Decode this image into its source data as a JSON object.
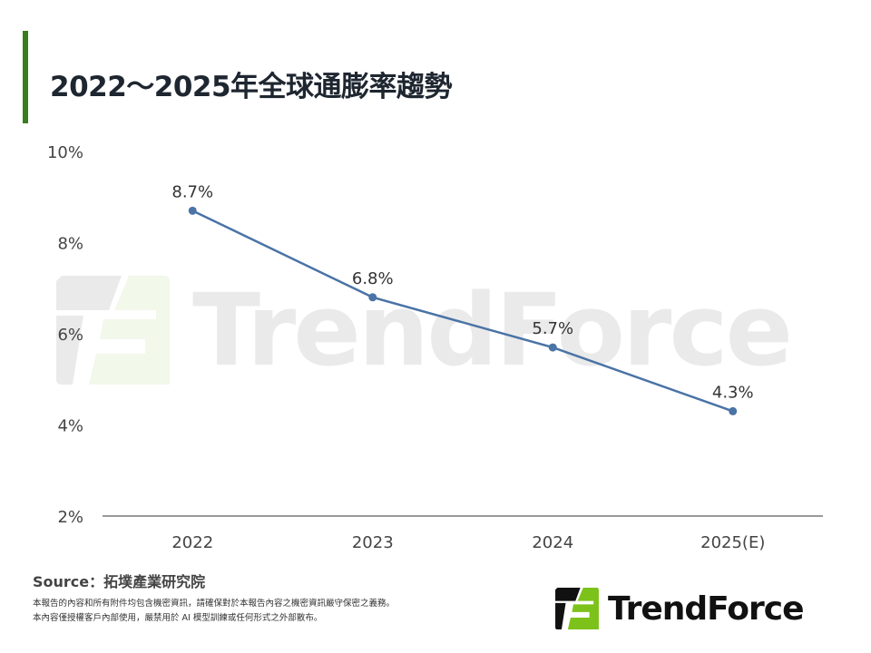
{
  "colors": {
    "accent": "#3a7d1e",
    "line": "#4a73a6",
    "logo_green": "#7cc21a",
    "logo_dark": "#111111"
  },
  "title": "2022～2025年全球通膨率趨勢",
  "source": "Source：拓墣產業研究院",
  "notice_lines": [
    "本報告的內容和所有附件均包含機密資訊，請確保對於本報告內容之機密資訊嚴守保密之義務。",
    "本內容僅授權客戶內部使用，嚴禁用於 AI 模型訓練或任何形式之外部散布。"
  ],
  "logo": {
    "text": "TrendForce"
  },
  "chart_data": {
    "type": "line",
    "title": "2022～2025年全球通膨率趨勢",
    "categories": [
      "2022",
      "2023",
      "2024",
      "2025(E)"
    ],
    "series": [
      {
        "name": "全球通膨率",
        "values": [
          8.7,
          6.8,
          5.7,
          4.3
        ]
      }
    ],
    "data_labels": [
      "8.7%",
      "6.8%",
      "5.7%",
      "4.3%"
    ],
    "ylim": [
      2,
      10
    ],
    "yticks": [
      2,
      4,
      6,
      8,
      10
    ],
    "ytick_labels": [
      "2%",
      "4%",
      "6%",
      "8%",
      "10%"
    ],
    "xlabel": "",
    "ylabel": "",
    "grid": false,
    "legend": "none"
  }
}
